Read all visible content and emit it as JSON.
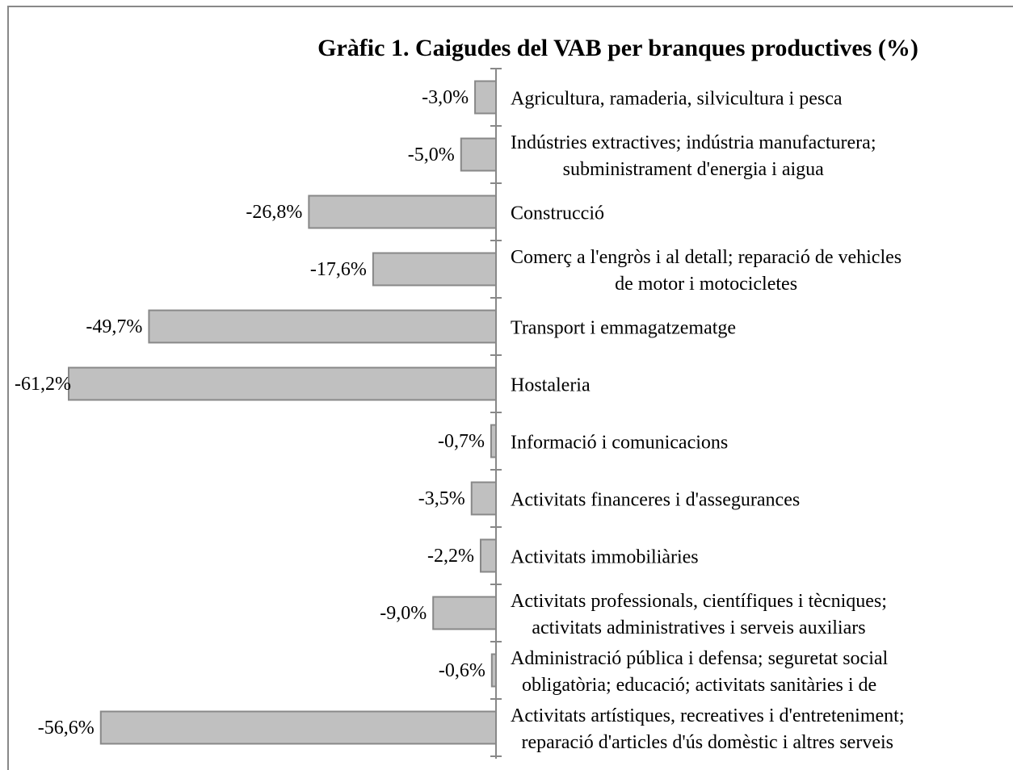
{
  "chart_data": {
    "type": "bar",
    "orientation": "horizontal",
    "title": "Gràfic 1. Caigudes del VAB per branques productives (%)",
    "categories": [
      "Agricultura, ramaderia, silvicultura i pesca",
      "Indústries extractives; indústria manufacturera;\nsubministrament d'energia i aigua",
      "Construcció",
      "Comerç a l'engròs i al detall; reparació de vehicles\nde motor i motocicletes",
      "Transport i emmagatzematge",
      "Hostaleria",
      "Informació i comunicacions",
      "Activitats financeres i d'assegurances",
      "Activitats immobiliàries",
      "Activitats professionals, científiques i tècniques;\nactivitats administratives i serveis auxiliars",
      "Administració pública i defensa; seguretat social\nobligatòria; educació; activitats sanitàries i de",
      "Activitats artístiques, recreatives i d'entreteniment;\nreparació d'articles d'ús domèstic i altres serveis"
    ],
    "values": [
      -3.0,
      -5.0,
      -26.8,
      -17.6,
      -49.7,
      -61.2,
      -0.7,
      -3.5,
      -2.2,
      -9.0,
      -0.6,
      -56.6
    ],
    "value_labels": [
      "-3,0%",
      "-5,0%",
      "-26,8%",
      "-17,6%",
      "-49,7%",
      "-61,2%",
      "-0,7%",
      "-3,5%",
      "-2,2%",
      "-9,0%",
      "-0,6%",
      "-56,6%"
    ],
    "color": "#c0c0c0"
  }
}
